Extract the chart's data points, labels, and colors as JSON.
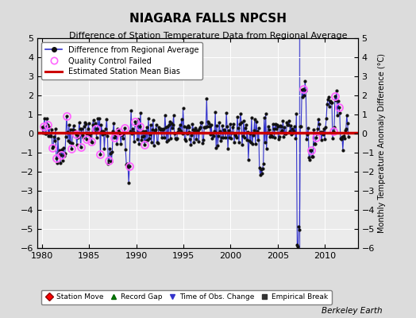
{
  "title": "NIAGARA FALLS NPCSH",
  "subtitle": "Difference of Station Temperature Data from Regional Average",
  "ylabel_right": "Monthly Temperature Anomaly Difference (°C)",
  "xlim": [
    1979.5,
    2013.5
  ],
  "ylim": [
    -6,
    5
  ],
  "yticks": [
    -6,
    -5,
    -4,
    -3,
    -2,
    -1,
    0,
    1,
    2,
    3,
    4,
    5
  ],
  "xticks": [
    1980,
    1985,
    1990,
    1995,
    2000,
    2005,
    2010
  ],
  "background_color": "#dcdcdc",
  "plot_bg_color": "#ebebeb",
  "grid_color": "#ffffff",
  "line_color": "#3333cc",
  "dot_color": "#111111",
  "bias_line_color": "#cc0000",
  "bias_line_value": 0.05,
  "qc_fail_color": "#ff66ff",
  "watermark": "Berkeley Earth",
  "time_obs_change_year": 2007.33,
  "random_seed": 42,
  "n_points": 390,
  "start_year": 1980.0,
  "end_year": 2012.5
}
